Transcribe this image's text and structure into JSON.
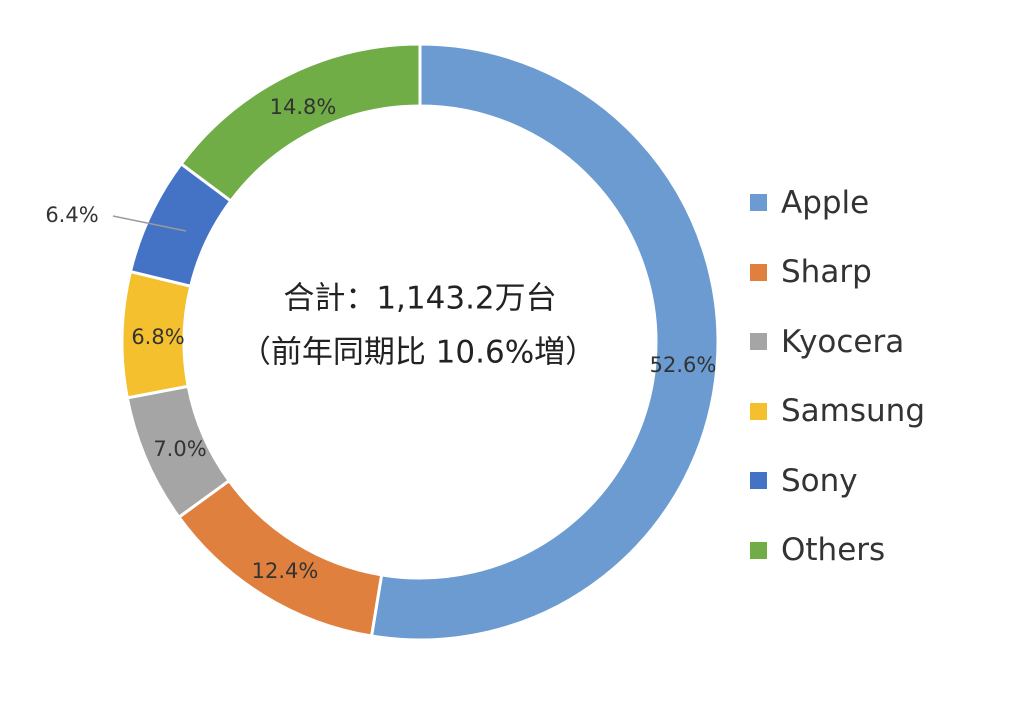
{
  "chart_data": {
    "type": "pie",
    "donut": true,
    "center_label": {
      "line1": "合計：1,143.2万台",
      "line2": "（前年同期比 10.6%増）"
    },
    "categories": [
      "Apple",
      "Sharp",
      "Kyocera",
      "Samsung",
      "Sony",
      "Others"
    ],
    "values": [
      52.6,
      12.4,
      7.0,
      6.8,
      6.4,
      14.8
    ],
    "value_labels": [
      "52.6%",
      "12.4%",
      "7.0%",
      "6.8%",
      "6.4%",
      "14.8%"
    ],
    "colors": [
      "#6B9BD1",
      "#E0803E",
      "#A5A5A5",
      "#F5C02E",
      "#4472C4",
      "#70AD47"
    ],
    "legend_position": "right"
  }
}
